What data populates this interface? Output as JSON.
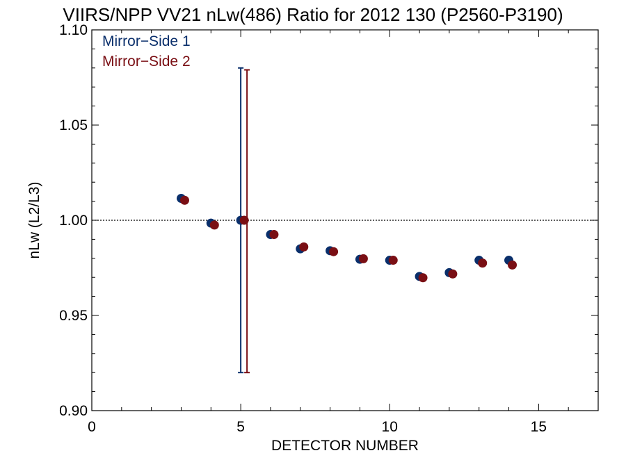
{
  "chart_data": {
    "type": "scatter",
    "title": "VIIRS/NPP VV21 nLw(486) Ratio for 2012 130 (P2560-P3190)",
    "xlabel": "DETECTOR NUMBER",
    "ylabel": "nLw (L2/L3)",
    "xlim": [
      0,
      17
    ],
    "ylim": [
      0.9,
      1.1
    ],
    "xticks": [
      0,
      5,
      10,
      15
    ],
    "xtick_labels": [
      "0",
      "5",
      "10",
      "15"
    ],
    "yticks": [
      0.9,
      0.95,
      1.0,
      1.05,
      1.1
    ],
    "ytick_labels": [
      "0.90",
      "0.95",
      "1.00",
      "1.05",
      "1.10"
    ],
    "reference_line": 1.0,
    "grid": false,
    "legend_position": "top-left",
    "series": [
      {
        "name": "Mirror−Side 1",
        "color": "#0a2f6b",
        "x": [
          3,
          4,
          5,
          6,
          7,
          8,
          9,
          10,
          11,
          12,
          13,
          14
        ],
        "y": [
          1.0115,
          0.9985,
          1.0,
          0.9925,
          0.985,
          0.984,
          0.9795,
          0.979,
          0.9705,
          0.9725,
          0.979,
          0.979
        ],
        "error_bar": {
          "x": 5,
          "low": 0.92,
          "high": 1.08
        }
      },
      {
        "name": "Mirror−Side 2",
        "color": "#7a0f14",
        "x": [
          3,
          4,
          5,
          6,
          7,
          8,
          9,
          10,
          11,
          12,
          13,
          14
        ],
        "y": [
          1.0105,
          0.9975,
          1.0,
          0.9925,
          0.986,
          0.9835,
          0.9798,
          0.979,
          0.9698,
          0.9718,
          0.9775,
          0.9765
        ],
        "error_bar": {
          "x": 5,
          "low": 0.92,
          "high": 1.079
        }
      }
    ]
  }
}
